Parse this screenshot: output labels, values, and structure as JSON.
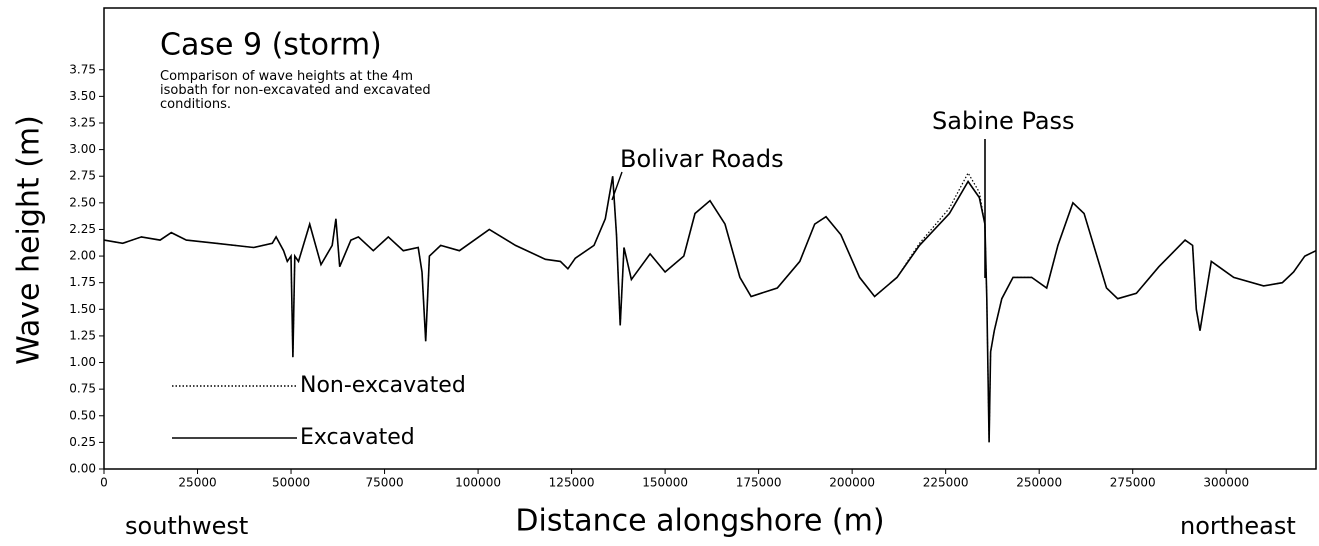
{
  "chart_data": {
    "type": "line",
    "title": "Case 9 (storm)",
    "subtitle": "Comparison of wave heights at the 4m isobath for non-excavated and excavated conditions.",
    "xlabel": "Distance alongshore (m)",
    "ylabel": "Wave height (m)",
    "annotations": [
      "Bolivar Roads",
      "Sabine Pass",
      "southwest",
      "northeast"
    ],
    "x": [
      0,
      5000,
      10000,
      15000,
      18000,
      22000,
      30000,
      40000,
      45000,
      46000,
      48000,
      49000,
      50000,
      50500,
      51000,
      52000,
      55000,
      58000,
      61000,
      62000,
      63000,
      66000,
      68000,
      72000,
      76000,
      80000,
      84000,
      85000,
      86000,
      87000,
      90000,
      95000,
      103000,
      110000,
      118000,
      122000,
      124000,
      126000,
      131000,
      134000,
      136000,
      137000,
      138000,
      139000,
      141000,
      146000,
      150000,
      155000,
      158000,
      162000,
      166000,
      170000,
      173000,
      180000,
      186000,
      190000,
      193000,
      197000,
      202000,
      206000,
      212000,
      218000,
      226000,
      231000,
      234000,
      235500,
      236000,
      236600,
      237000,
      238000,
      240000,
      243000,
      248000,
      252000,
      255000,
      259000,
      262000,
      268000,
      271000,
      276000,
      282000,
      289000,
      291000,
      292000,
      293000,
      296000,
      298000,
      302000,
      310000,
      315000,
      318000,
      321000,
      324000
    ],
    "series": [
      {
        "name": "Non-excavated",
        "color": "#000000",
        "linestyle": "dotted",
        "values": [
          2.15,
          2.12,
          2.18,
          2.15,
          2.22,
          2.15,
          2.12,
          2.08,
          2.12,
          2.18,
          2.05,
          1.95,
          2.0,
          1.05,
          2.0,
          1.95,
          2.3,
          1.92,
          2.1,
          2.35,
          1.9,
          2.15,
          2.18,
          2.05,
          2.18,
          2.05,
          2.08,
          1.85,
          1.2,
          2.0,
          2.1,
          2.05,
          2.25,
          2.1,
          1.97,
          1.95,
          1.88,
          1.98,
          2.1,
          2.35,
          2.75,
          2.2,
          1.35,
          2.08,
          1.78,
          2.02,
          1.85,
          2.0,
          2.4,
          2.52,
          2.3,
          1.8,
          1.62,
          1.7,
          1.95,
          2.3,
          2.37,
          2.2,
          1.8,
          1.62,
          1.8,
          2.12,
          2.45,
          2.78,
          2.6,
          2.3,
          1.6,
          0.25,
          1.1,
          1.3,
          1.6,
          1.8,
          1.8,
          1.7,
          2.1,
          2.5,
          2.4,
          1.7,
          1.6,
          1.65,
          1.9,
          2.15,
          2.1,
          1.5,
          1.3,
          1.95,
          1.9,
          1.8,
          1.72,
          1.75,
          1.85,
          2.0,
          2.05
        ]
      },
      {
        "name": "Excavated",
        "color": "#000000",
        "linestyle": "solid",
        "values": [
          2.15,
          2.12,
          2.18,
          2.15,
          2.22,
          2.15,
          2.12,
          2.08,
          2.12,
          2.18,
          2.05,
          1.95,
          2.0,
          1.05,
          2.0,
          1.95,
          2.3,
          1.92,
          2.1,
          2.35,
          1.9,
          2.15,
          2.18,
          2.05,
          2.18,
          2.05,
          2.08,
          1.85,
          1.2,
          2.0,
          2.1,
          2.05,
          2.25,
          2.1,
          1.97,
          1.95,
          1.88,
          1.98,
          2.1,
          2.35,
          2.75,
          2.2,
          1.35,
          2.08,
          1.78,
          2.02,
          1.85,
          2.0,
          2.4,
          2.52,
          2.3,
          1.8,
          1.62,
          1.7,
          1.95,
          2.3,
          2.37,
          2.2,
          1.8,
          1.62,
          1.8,
          2.1,
          2.4,
          2.7,
          2.55,
          2.3,
          1.6,
          0.25,
          1.1,
          1.3,
          1.6,
          1.8,
          1.8,
          1.7,
          2.1,
          2.5,
          2.4,
          1.7,
          1.6,
          1.65,
          1.9,
          2.15,
          2.1,
          1.5,
          1.3,
          1.95,
          1.9,
          1.8,
          1.72,
          1.75,
          1.85,
          2.0,
          2.05
        ]
      }
    ],
    "xlim": [
      0,
      324000
    ],
    "xticks": [
      0,
      25000,
      50000,
      75000,
      100000,
      125000,
      150000,
      175000,
      200000,
      225000,
      250000,
      275000,
      300000
    ],
    "ylim": [
      0,
      4.33
    ],
    "yticks": [
      {
        "value": 0,
        "label": "0.00"
      },
      {
        "value": 0.25,
        "label": "0.25"
      },
      {
        "value": 0.5,
        "label": "0.50"
      },
      {
        "value": 0.75,
        "label": "0.75"
      },
      {
        "value": 1,
        "label": "1.00"
      },
      {
        "value": 1.25,
        "label": "1.25"
      },
      {
        "value": 1.5,
        "label": "1.50"
      },
      {
        "value": 1.75,
        "label": "1.75"
      },
      {
        "value": 2,
        "label": "2.00"
      },
      {
        "value": 2.25,
        "label": "2.25"
      },
      {
        "value": 2.5,
        "label": "2.50"
      },
      {
        "value": 2.75,
        "label": "2.75"
      },
      {
        "value": 3,
        "label": "3.00"
      },
      {
        "value": 3.25,
        "label": "3.25"
      },
      {
        "value": 3.5,
        "label": "3.50"
      },
      {
        "value": 3.75,
        "label": "3.75"
      }
    ],
    "grid": false,
    "legend": "lower left"
  }
}
